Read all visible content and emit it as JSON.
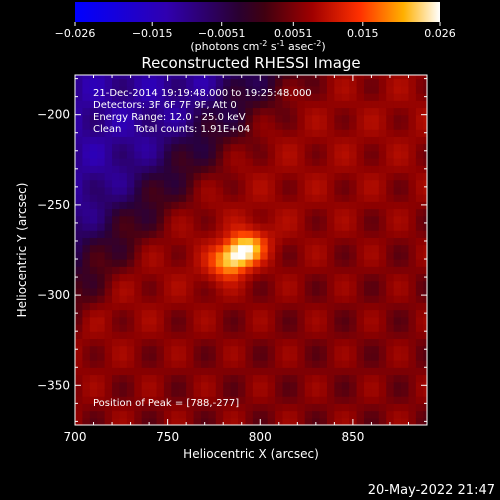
{
  "chart_data": {
    "type": "heatmap",
    "title": "Reconstructed RHESSI Image",
    "xlabel": "Heliocentric X (arcsec)",
    "ylabel": "Heliocentric Y (arcsec)",
    "xlim": [
      700,
      890
    ],
    "ylim": [
      -372,
      -178
    ],
    "xticks": [
      700,
      750,
      800,
      850
    ],
    "yticks": [
      -200,
      -250,
      -300,
      -350
    ],
    "colorbar": {
      "min": -0.026,
      "max": 0.026,
      "ticks": [
        "-0.026",
        "-0.015",
        "-0.0051",
        "0.0051",
        "0.015",
        "0.026"
      ],
      "unit_parts": [
        "(photons cm",
        "-2",
        " s",
        "-1",
        " asec",
        "-2",
        ")"
      ]
    },
    "annotations": [
      "21-Dec-2014 19:19:48.000 to 19:25:48.000",
      "Detectors: 3F 6F 7F 9F, Att 0",
      "Energy Range: 12.0 - 25.0 keV",
      "Clean    Total counts: 1.91E+04"
    ],
    "peak_text": "Position of Peak = [788,-277]",
    "peak": [
      788,
      -277
    ],
    "timestamp": "20-May-2022 21:47"
  }
}
